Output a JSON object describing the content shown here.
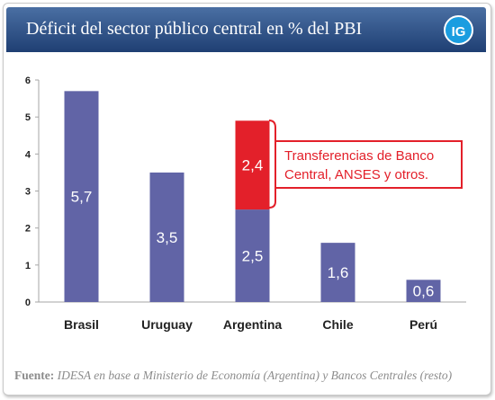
{
  "header": {
    "title": "Déficit del sector público central en % del PBI",
    "logo_text": "IG"
  },
  "annotation": {
    "line1": "Transferencias de Banco",
    "line2": "Central, ANSES y otros."
  },
  "source": {
    "label": "Fuente:",
    "text": "IDESA en base a Ministerio de Economía (Argentina) y Bancos Centrales (resto)"
  },
  "colors": {
    "header": "#2a4a80",
    "bar": "#6164a6",
    "highlight": "#e3202a",
    "logo": "#1a9de0"
  },
  "chart_data": {
    "type": "bar",
    "stacked": true,
    "categories": [
      "Brasil",
      "Uruguay",
      "Argentina",
      "Chile",
      "Perú"
    ],
    "series": [
      {
        "values": [
          5.7,
          3.5,
          2.5,
          1.6,
          0.6
        ],
        "labels": [
          "5,7",
          "3,5",
          "2,5",
          "1,6",
          "0,6"
        ]
      },
      {
        "values": [
          0,
          0,
          2.4,
          0,
          0
        ],
        "labels": [
          "",
          "",
          "2,4",
          "",
          ""
        ]
      }
    ],
    "ylim": [
      0,
      6
    ],
    "yticks": [
      "0",
      "1",
      "2",
      "3",
      "4",
      "5",
      "6"
    ],
    "title": "",
    "xlabel": "",
    "ylabel": ""
  }
}
